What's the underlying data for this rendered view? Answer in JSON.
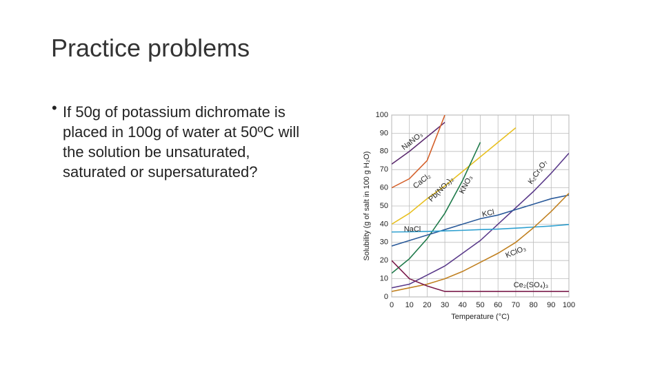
{
  "title": "Practice problems",
  "bullet": [
    "If 50g of potassium dichromate is",
    "placed in 100g of water at 50ºC will",
    "the solution be unsaturated,",
    "saturated or supersaturated?"
  ],
  "chart_data": {
    "type": "line",
    "xlabel": "Temperature (°C)",
    "ylabel": "Solubility (g of salt in 100 g H₂O)",
    "x": [
      0,
      10,
      20,
      30,
      40,
      50,
      60,
      70,
      80,
      90,
      100
    ],
    "xlim": [
      0,
      100
    ],
    "xticks": [
      0,
      10,
      20,
      30,
      40,
      50,
      60,
      70,
      80,
      90,
      100
    ],
    "ylim": [
      0,
      100
    ],
    "yticks": [
      0,
      10,
      20,
      30,
      40,
      50,
      60,
      70,
      80,
      90,
      100
    ],
    "grid": true,
    "series": [
      {
        "name": "NaNO₃",
        "color": "#5b2a6e",
        "values": [
          73,
          80,
          88,
          96,
          null,
          null,
          null,
          null,
          null,
          null,
          null
        ]
      },
      {
        "name": "CaCl₂",
        "color": "#d4602a",
        "values": [
          60,
          65,
          75,
          100,
          null,
          null,
          null,
          null,
          null,
          null,
          null
        ]
      },
      {
        "name": "Pb(NO₃)₂",
        "color": "#e8c020",
        "values": [
          40,
          46,
          54,
          61,
          69,
          77,
          85,
          93,
          null,
          null,
          null
        ]
      },
      {
        "name": "KNO₃",
        "color": "#1e7a4a",
        "values": [
          13,
          21,
          32,
          46,
          64,
          85,
          null,
          null,
          null,
          null,
          null
        ]
      },
      {
        "name": "K₂Cr₂O₇",
        "color": "#5a3a8a",
        "values": [
          5,
          7,
          12,
          17,
          24,
          31,
          40,
          49,
          58,
          68,
          79
        ]
      },
      {
        "name": "KCl",
        "color": "#2a5a9a",
        "values": [
          28,
          31,
          34,
          37,
          40,
          43,
          45,
          48,
          51,
          54,
          56
        ]
      },
      {
        "name": "NaCl",
        "color": "#2ea0d0",
        "values": [
          35.7,
          35.8,
          36,
          36.3,
          36.6,
          37,
          37.3,
          37.8,
          38.4,
          39,
          39.8
        ]
      },
      {
        "name": "KClO₃",
        "color": "#c08020",
        "values": [
          3,
          5,
          7,
          10,
          14,
          19,
          24,
          30,
          38,
          47,
          57
        ]
      },
      {
        "name": "Ce₂(SO₄)₃",
        "color": "#7a1a4a",
        "values": [
          20,
          10,
          6,
          3,
          3,
          3,
          3,
          3,
          3,
          3,
          3
        ]
      }
    ]
  }
}
